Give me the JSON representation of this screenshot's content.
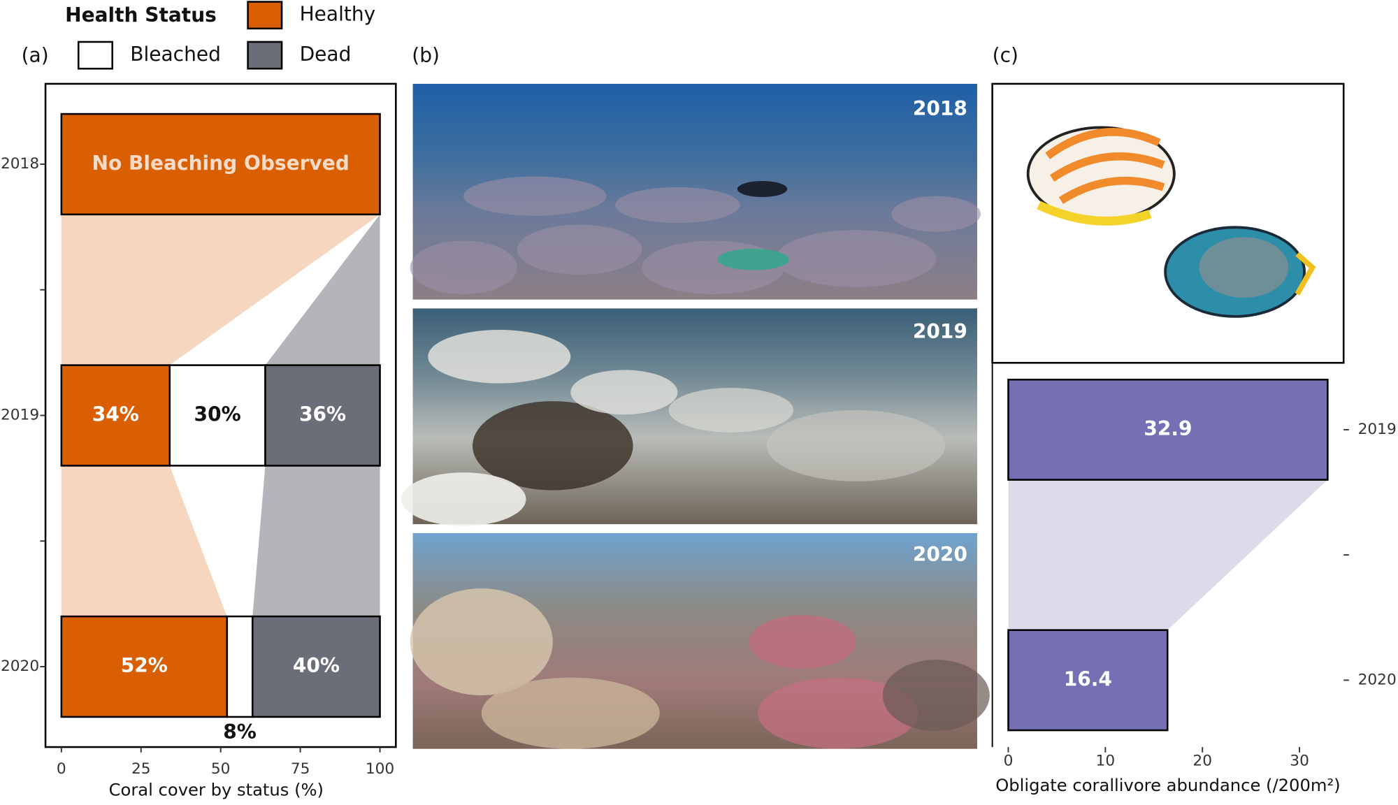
{
  "chart_data": [
    {
      "type": "bar",
      "stacked": true,
      "panel_label": "(a)",
      "legend_title": "Health Status",
      "categories": [
        "2018",
        "2019",
        "2020"
      ],
      "series": [
        {
          "name": "Healthy",
          "color": "#d95f02",
          "link_color": "#f6d6bf",
          "values": [
            100,
            34,
            52
          ],
          "value_labels": [
            null,
            "34%",
            "52%"
          ]
        },
        {
          "name": "Bleached",
          "color": "#ffffff",
          "link_color": "#ffffff",
          "values": [
            0,
            30,
            8
          ],
          "value_labels": [
            null,
            "30%",
            "8%"
          ]
        },
        {
          "name": "Dead",
          "color": "#6b6e78",
          "link_color": "#b3b5bb",
          "values": [
            0,
            36,
            40
          ],
          "value_labels": [
            null,
            "36%",
            "40%"
          ]
        }
      ],
      "annotation": "No Bleaching Observed",
      "xlabel": "Coral cover by status (%)",
      "xlim": [
        -5,
        105
      ],
      "xticks": [
        0,
        25,
        50,
        75,
        100
      ]
    },
    {
      "type": "bar",
      "stacked": false,
      "panel_label": "(c)",
      "categories": [
        "2019",
        "2020"
      ],
      "series": [
        {
          "color": "#7570b3",
          "link_color": "#dcdbea",
          "values": [
            32.9,
            16.4
          ]
        }
      ],
      "xlabel": "Obligate corallivore abundance (/200m²)",
      "xlim": [
        -1.645,
        34.545
      ],
      "xticks": [
        0,
        10,
        20,
        30
      ]
    }
  ],
  "photos": {
    "panel_label": "(b)",
    "captions": [
      "2018",
      "2019",
      "2020"
    ]
  }
}
